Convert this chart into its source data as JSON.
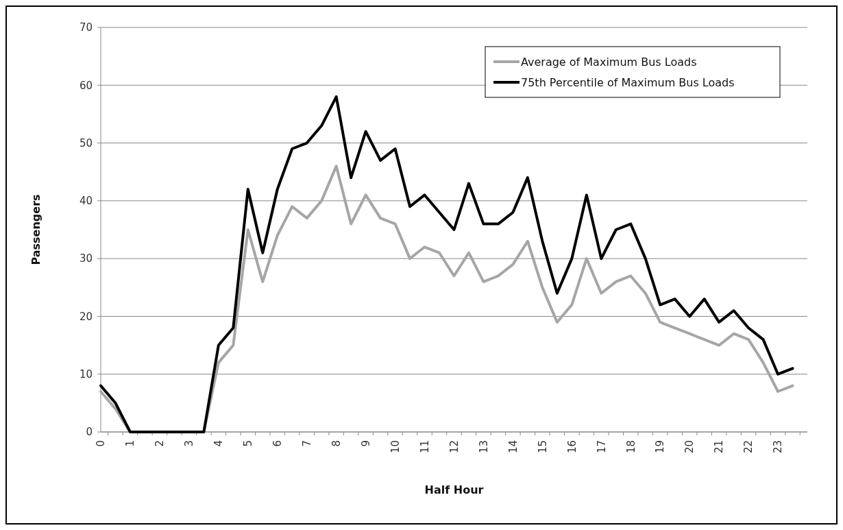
{
  "chart_data": {
    "type": "line",
    "xlabel": "Half Hour",
    "ylabel": "Passengers",
    "categories": [
      "0",
      null,
      "1",
      null,
      "2",
      null,
      "3",
      null,
      "4",
      null,
      "5",
      null,
      "6",
      null,
      "7",
      null,
      "8",
      null,
      "9",
      null,
      "10",
      null,
      "11",
      null,
      "12",
      null,
      "13",
      null,
      "14",
      null,
      "15",
      null,
      "16",
      null,
      "17",
      null,
      "18",
      null,
      "19",
      null,
      "20",
      null,
      "21",
      null,
      "22",
      null,
      "23",
      null
    ],
    "series": [
      {
        "name": "Average of Maximum Bus Loads",
        "color": "#a6a6a6",
        "values": [
          7,
          4,
          0,
          0,
          0,
          0,
          0,
          0,
          12,
          15,
          35,
          26,
          34,
          39,
          37,
          40,
          46,
          36,
          41,
          37,
          36,
          30,
          32,
          31,
          27,
          31,
          26,
          27,
          29,
          33,
          25,
          19,
          22,
          30,
          24,
          26,
          27,
          24,
          19,
          18,
          17,
          16,
          15,
          17,
          16,
          12,
          7,
          8
        ]
      },
      {
        "name": "75th Percentile of Maximum Bus Loads",
        "color": "#000000",
        "values": [
          8,
          5,
          0,
          0,
          0,
          0,
          0,
          0,
          15,
          18,
          42,
          31,
          42,
          49,
          50,
          53,
          58,
          44,
          52,
          47,
          49,
          39,
          41,
          38,
          35,
          43,
          36,
          36,
          38,
          44,
          33,
          24,
          30,
          41,
          30,
          35,
          36,
          30,
          22,
          23,
          20,
          23,
          19,
          21,
          18,
          16,
          10,
          11
        ]
      }
    ],
    "ylim": [
      0,
      70
    ],
    "yticks": [
      0,
      10,
      20,
      30,
      40,
      50,
      60,
      70
    ],
    "grid": "y",
    "legend": "top right",
    "marker": "none",
    "line_style": "solid"
  }
}
